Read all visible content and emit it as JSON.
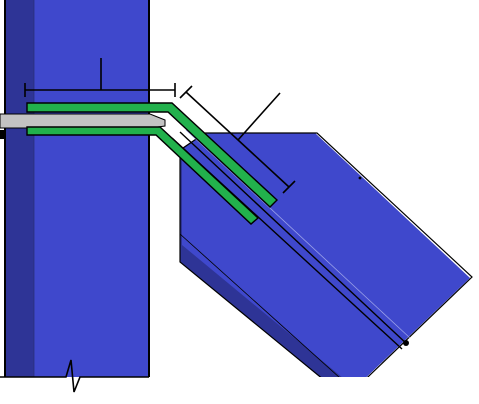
{
  "diagram": {
    "colors": {
      "column_face": "#3f48cc",
      "column_side": "#2e3496",
      "column_outline": "#000000",
      "plate_face": "#3f48cc",
      "plate_side": "#2e3496",
      "gusset_green": "#22b14c",
      "filler_gray": "#c3c3c3",
      "dimension_line": "#000000",
      "background": "#ffffff"
    },
    "components": [
      "column-member",
      "inclined-plate-member",
      "gusset-plate-upper",
      "gusset-plate-lower",
      "filler-plate",
      "horizontal-dimension",
      "inclined-dimension",
      "break-symbol"
    ]
  }
}
